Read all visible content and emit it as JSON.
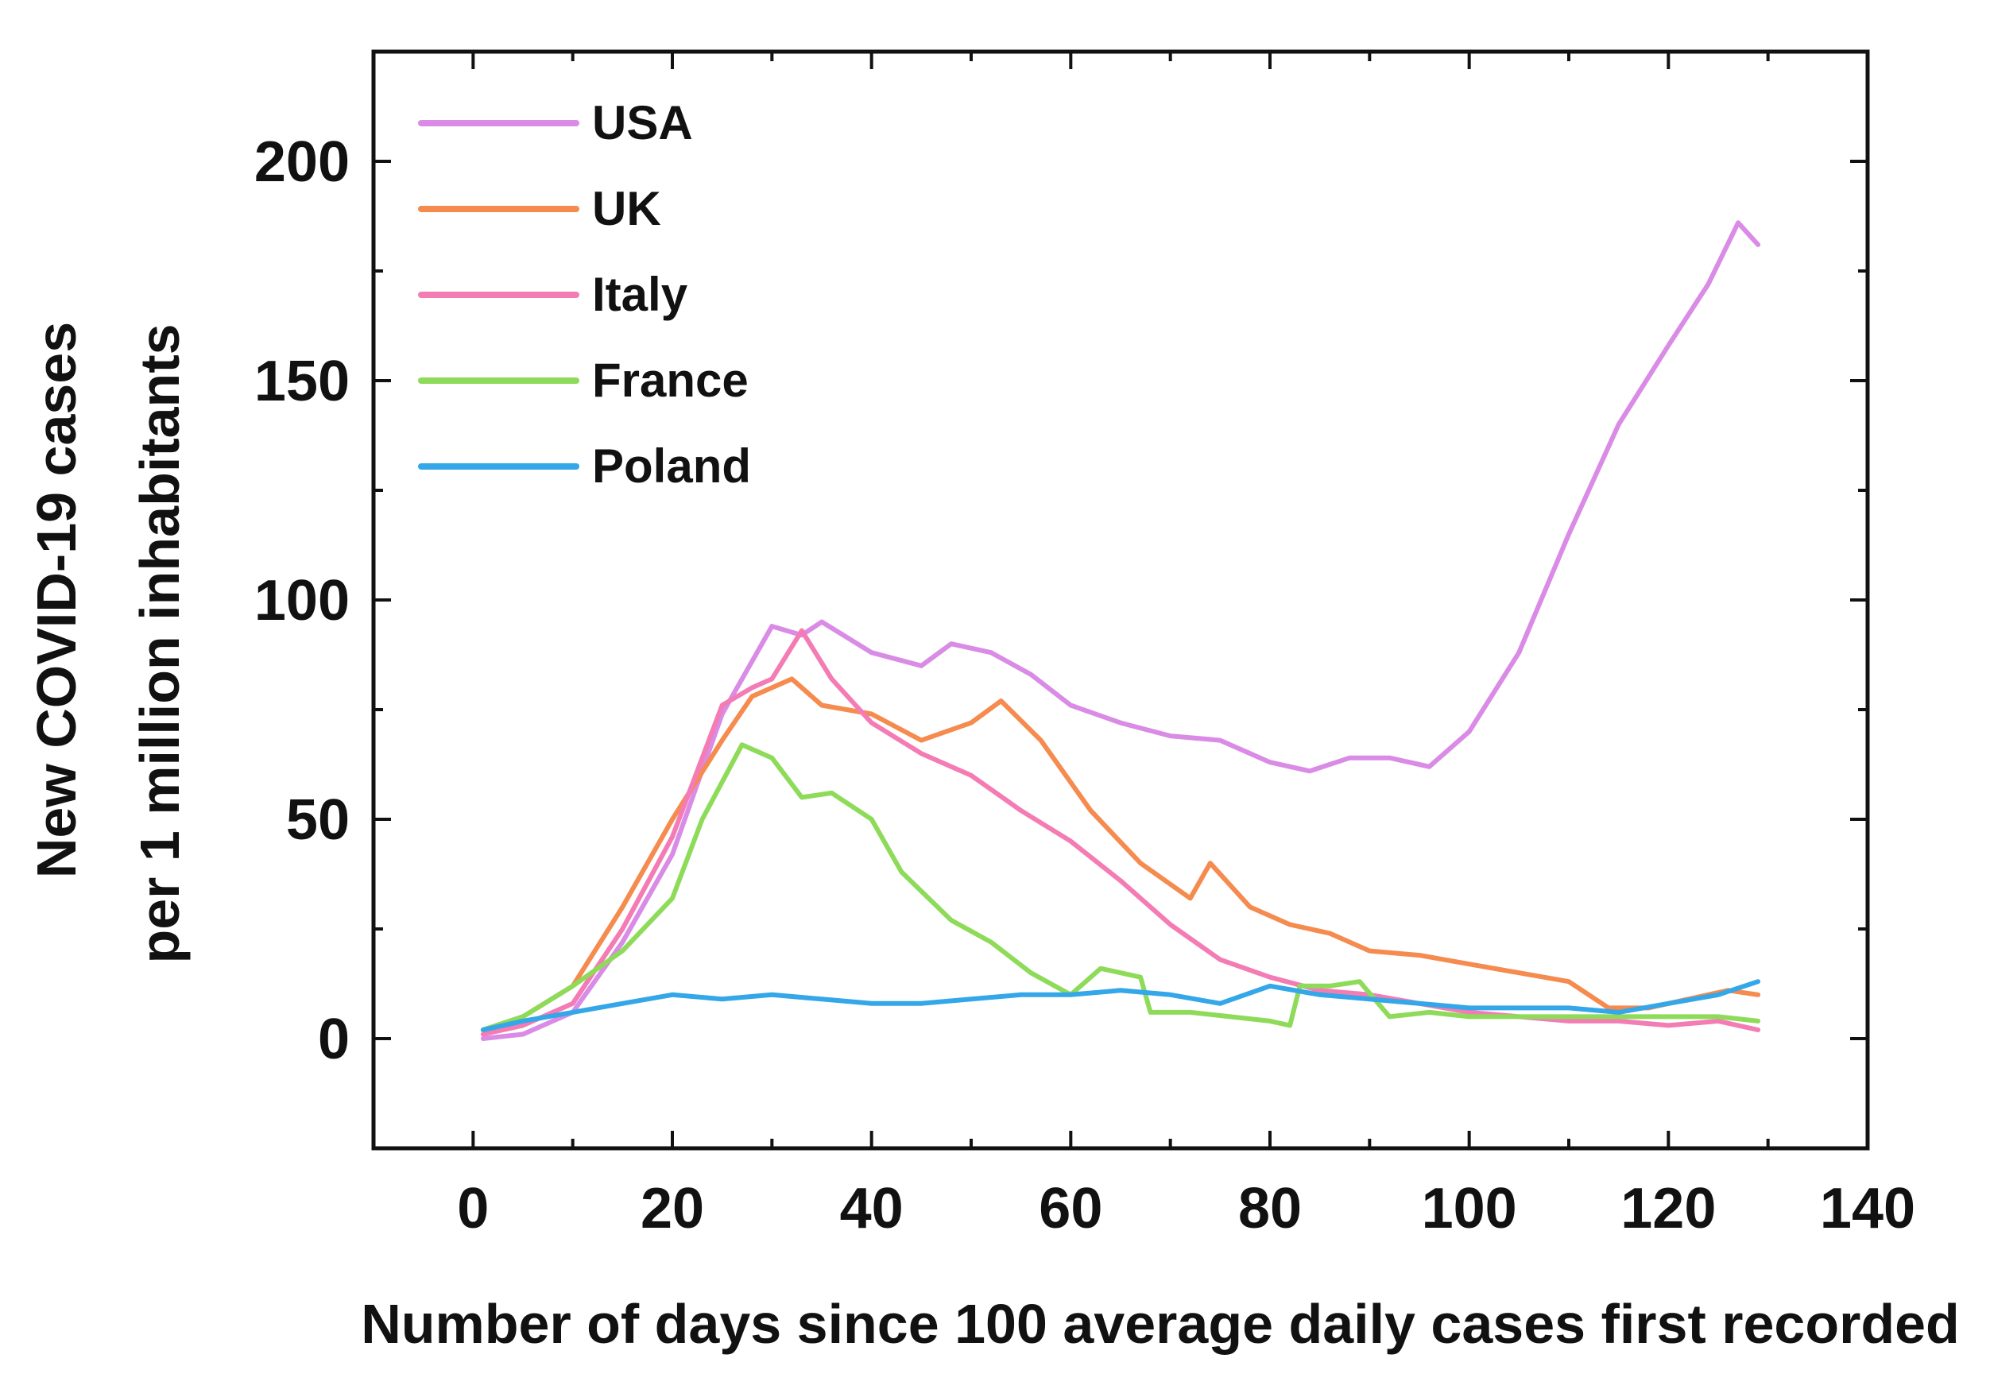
{
  "chart_data": {
    "type": "line",
    "title": "",
    "xlabel": "Number of days since 100 average daily cases first recorded",
    "ylabel_lines": [
      "New COVID-19 cases",
      "per 1 million inhabitants"
    ],
    "xlim": [
      -10,
      140
    ],
    "ylim": [
      -25,
      225
    ],
    "x_ticks": [
      0,
      20,
      40,
      60,
      80,
      100,
      120,
      140
    ],
    "y_ticks": [
      0,
      50,
      100,
      150,
      200
    ],
    "x_tick_labels": [
      "0",
      "20",
      "40",
      "60",
      "80",
      "100",
      "120",
      "140"
    ],
    "y_tick_labels": [
      "0",
      "50",
      "100",
      "150",
      "200"
    ],
    "legend_position": "top-left",
    "series": [
      {
        "name": "USA",
        "color": "#d98be6",
        "x": [
          1,
          5,
          10,
          15,
          20,
          25,
          30,
          33,
          35,
          40,
          45,
          48,
          52,
          56,
          60,
          65,
          70,
          75,
          80,
          84,
          88,
          92,
          96,
          100,
          105,
          110,
          115,
          120,
          124,
          127,
          129
        ],
        "y": [
          0,
          1,
          6,
          22,
          42,
          74,
          94,
          92,
          95,
          88,
          85,
          90,
          88,
          83,
          76,
          72,
          69,
          68,
          63,
          61,
          64,
          64,
          62,
          70,
          88,
          115,
          140,
          158,
          172,
          186,
          181
        ]
      },
      {
        "name": "UK",
        "color": "#f58b4e",
        "x": [
          1,
          5,
          10,
          15,
          20,
          25,
          28,
          32,
          35,
          40,
          45,
          50,
          53,
          57,
          62,
          67,
          72,
          74,
          78,
          82,
          86,
          90,
          95,
          100,
          105,
          110,
          114,
          118,
          122,
          126,
          129
        ],
        "y": [
          2,
          5,
          12,
          30,
          50,
          68,
          78,
          82,
          76,
          74,
          68,
          72,
          77,
          68,
          52,
          40,
          32,
          40,
          30,
          26,
          24,
          20,
          19,
          17,
          15,
          13,
          7,
          7,
          9,
          11,
          10
        ]
      },
      {
        "name": "Italy",
        "color": "#f47cb4",
        "x": [
          1,
          5,
          10,
          15,
          20,
          25,
          28,
          30,
          33,
          36,
          40,
          45,
          50,
          55,
          60,
          65,
          70,
          75,
          80,
          85,
          90,
          95,
          100,
          105,
          110,
          115,
          120,
          125,
          129
        ],
        "y": [
          1,
          3,
          8,
          25,
          46,
          76,
          80,
          82,
          93,
          82,
          72,
          65,
          60,
          52,
          45,
          36,
          26,
          18,
          14,
          11,
          10,
          8,
          6,
          5,
          4,
          4,
          3,
          4,
          2
        ]
      },
      {
        "name": "France",
        "color": "#8edb5a",
        "x": [
          1,
          5,
          10,
          15,
          20,
          23,
          27,
          30,
          33,
          36,
          40,
          43,
          48,
          52,
          56,
          60,
          63,
          67,
          68,
          72,
          76,
          80,
          82,
          83,
          86,
          89,
          92,
          96,
          100,
          105,
          110,
          115,
          120,
          125,
          129
        ],
        "y": [
          2,
          5,
          12,
          20,
          32,
          50,
          67,
          64,
          55,
          56,
          50,
          38,
          27,
          22,
          15,
          10,
          16,
          14,
          6,
          6,
          5,
          4,
          3,
          12,
          12,
          13,
          5,
          6,
          5,
          5,
          5,
          5,
          5,
          5,
          4
        ]
      },
      {
        "name": "Poland",
        "color": "#33a7e8",
        "x": [
          1,
          5,
          10,
          15,
          20,
          25,
          30,
          35,
          40,
          45,
          50,
          55,
          60,
          65,
          70,
          75,
          80,
          85,
          90,
          95,
          100,
          105,
          110,
          115,
          120,
          125,
          129
        ],
        "y": [
          2,
          4,
          6,
          8,
          10,
          9,
          10,
          9,
          8,
          8,
          9,
          10,
          10,
          11,
          10,
          8,
          12,
          10,
          9,
          8,
          7,
          7,
          7,
          6,
          8,
          10,
          13
        ]
      }
    ]
  }
}
